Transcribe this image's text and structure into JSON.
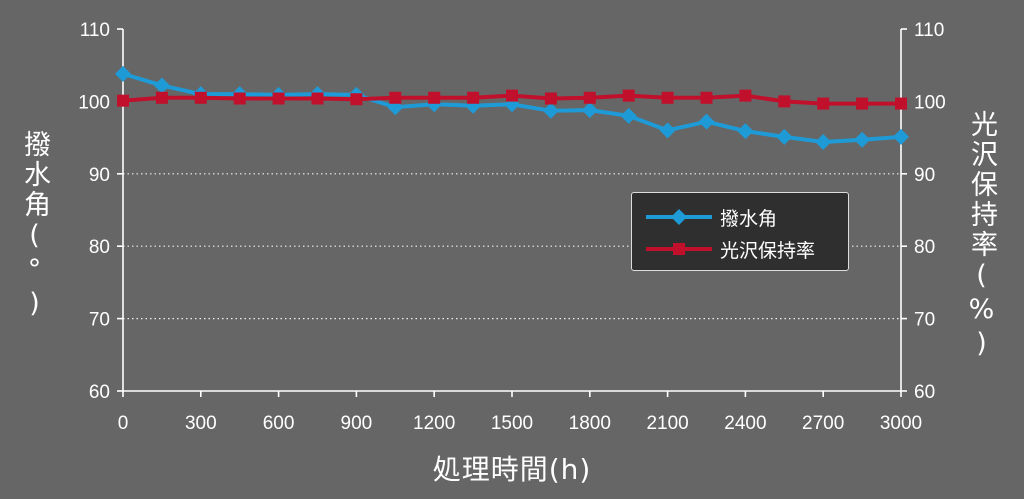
{
  "chart_data": {
    "type": "line",
    "xlabel": "処理時間(h)",
    "ylabel_left": "撥水角(°)",
    "ylabel_right": "光沢保持率(%)",
    "xlim": [
      0,
      3000
    ],
    "ylim_left": [
      60,
      110
    ],
    "ylim_right": [
      60,
      110
    ],
    "x_ticks": [
      "0",
      "300",
      "600",
      "900",
      "1200",
      "1500",
      "1800",
      "2100",
      "2400",
      "2700",
      "3000"
    ],
    "y_ticks_left": [
      "60",
      "70",
      "80",
      "90",
      "100",
      "110"
    ],
    "y_ticks_right": [
      "60",
      "70",
      "80",
      "90",
      "100",
      "110"
    ],
    "grid": "horizontal dotted at 70, 80, 90",
    "legend_placement": "right-middle",
    "series": [
      {
        "name": "撥水角",
        "axis": "left",
        "color": "#1e9bd7",
        "marker": "diamond",
        "x": [
          0,
          150,
          300,
          450,
          600,
          750,
          900,
          1050,
          1200,
          1350,
          1500,
          1650,
          1800,
          1950,
          2100,
          2250,
          2400,
          2550,
          2700,
          2850,
          3000
        ],
        "values": [
          103.8,
          102.2,
          101.0,
          101.0,
          100.9,
          101.0,
          100.9,
          99.2,
          99.6,
          99.4,
          99.6,
          98.7,
          98.8,
          98.0,
          96.0,
          97.2,
          95.9,
          95.1,
          94.4,
          94.7,
          95.1
        ]
      },
      {
        "name": "光沢保持率",
        "axis": "right",
        "color": "#c0102b",
        "marker": "square",
        "x": [
          0,
          150,
          300,
          450,
          600,
          750,
          900,
          1050,
          1200,
          1350,
          1500,
          1650,
          1800,
          1950,
          2100,
          2250,
          2400,
          2550,
          2700,
          2850,
          3000
        ],
        "values": [
          100.1,
          100.5,
          100.5,
          100.4,
          100.4,
          100.4,
          100.3,
          100.5,
          100.5,
          100.5,
          100.8,
          100.4,
          100.5,
          100.8,
          100.5,
          100.5,
          100.8,
          100.0,
          99.7,
          99.7,
          99.7
        ]
      }
    ]
  }
}
